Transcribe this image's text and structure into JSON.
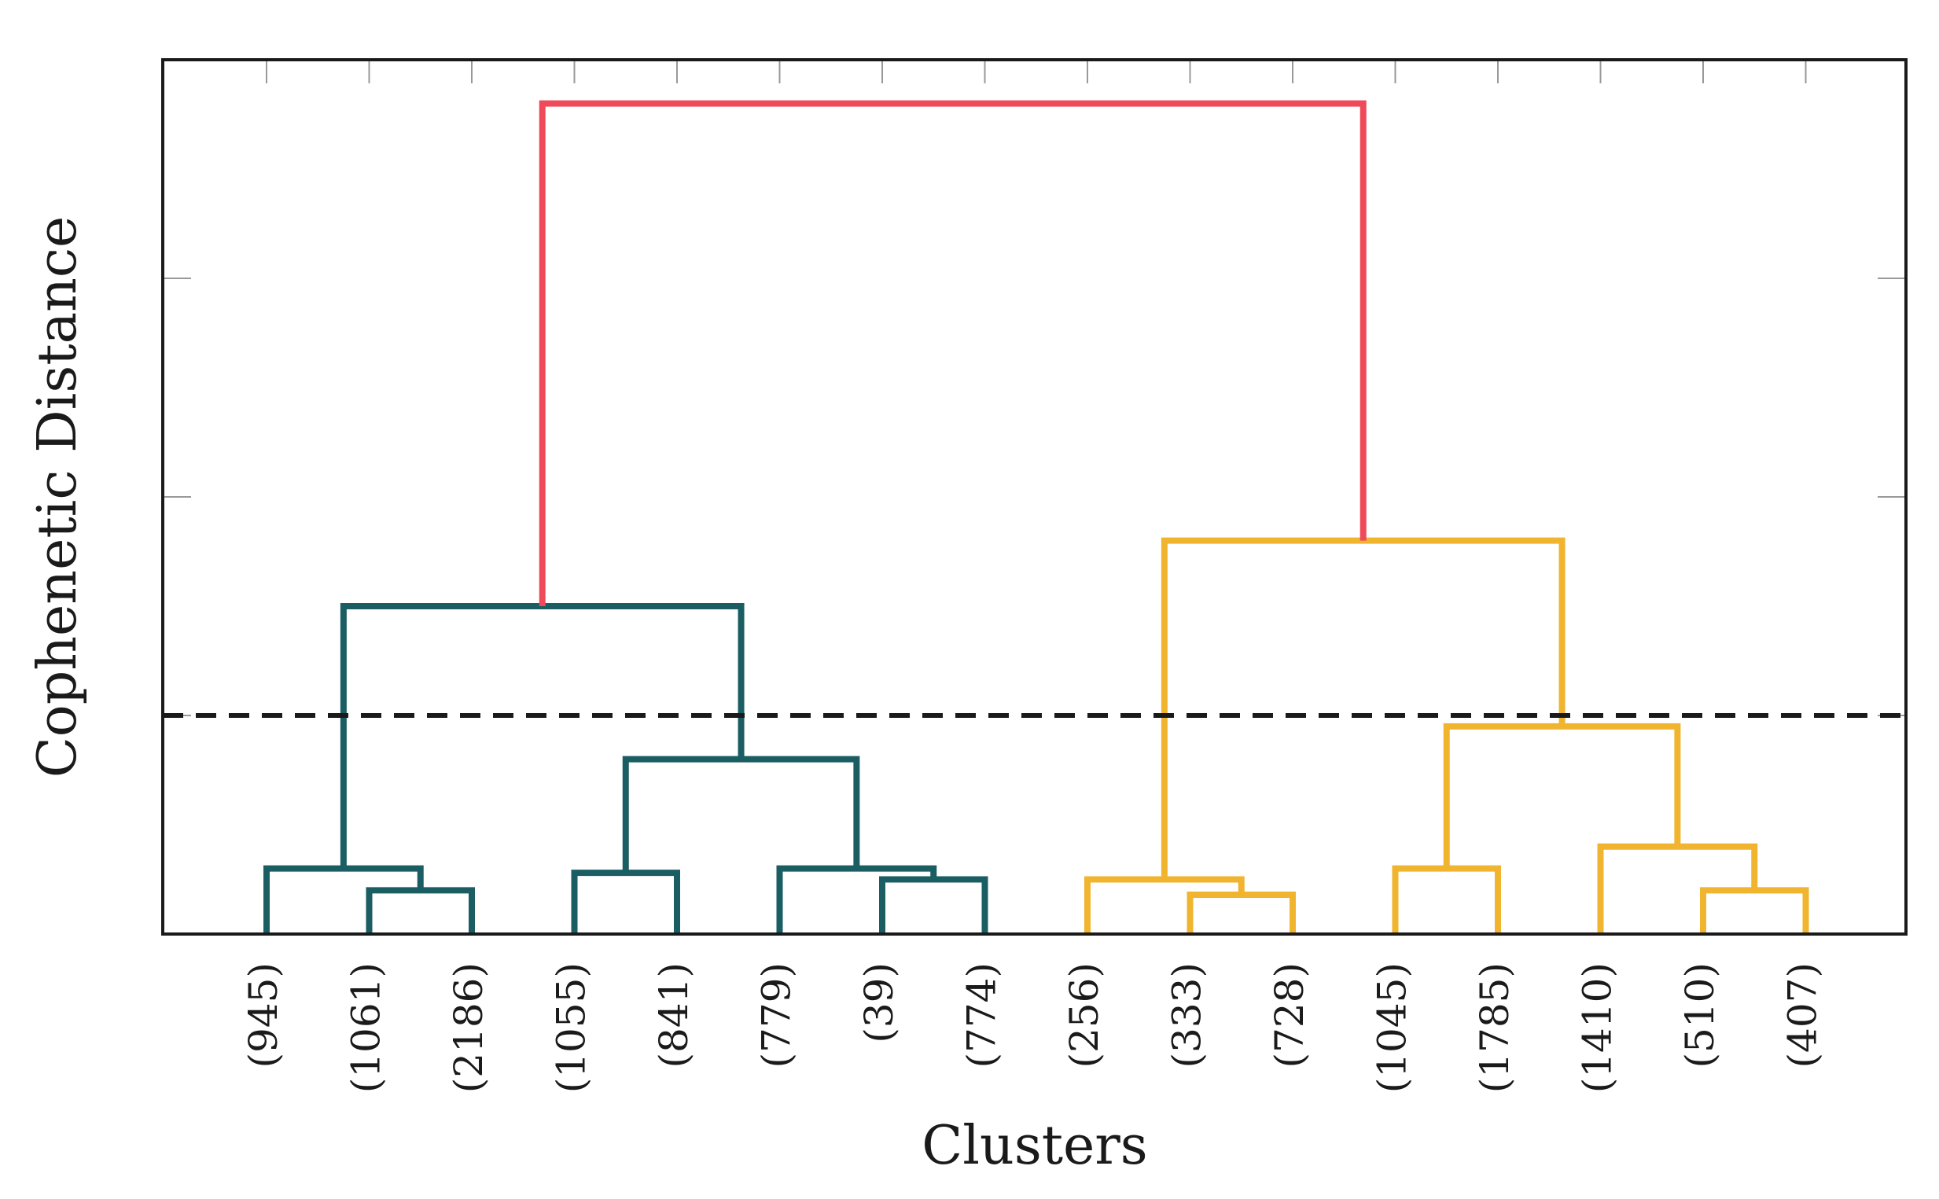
{
  "chart_data": {
    "type": "dendrogram",
    "title": "",
    "xlabel": "Clusters",
    "ylabel": "Cophenetic Distance",
    "ylim": [
      0,
      4
    ],
    "y_ticks": [
      1,
      2,
      3
    ],
    "cut_threshold": 1.0,
    "leaves": [
      "(945)",
      "(1061)",
      "(2186)",
      "(1055)",
      "(841)",
      "(779)",
      "(39)",
      "(774)",
      "(256)",
      "(333)",
      "(728)",
      "(1045)",
      "(1785)",
      "(1410)",
      "(510)",
      "(407)"
    ],
    "colors": {
      "teal": "#1a5e63",
      "gold": "#f0b42f",
      "red": "#ef4a5a",
      "threshold": "#1a1a1a",
      "axis": "#1a1a1a",
      "tick": "#999999"
    },
    "merges": [
      {
        "id": "m1",
        "left": "leaf:1",
        "right": "leaf:2",
        "height": 0.2,
        "color": "teal"
      },
      {
        "id": "m2",
        "left": "leaf:0",
        "right": "m1",
        "height": 0.3,
        "color": "teal"
      },
      {
        "id": "m3",
        "left": "leaf:3",
        "right": "leaf:4",
        "height": 0.28,
        "color": "teal"
      },
      {
        "id": "m4",
        "left": "leaf:6",
        "right": "leaf:7",
        "height": 0.25,
        "color": "teal"
      },
      {
        "id": "m5",
        "left": "leaf:5",
        "right": "m4",
        "height": 0.3,
        "color": "teal"
      },
      {
        "id": "m6",
        "left": "m3",
        "right": "m5",
        "height": 0.8,
        "color": "teal"
      },
      {
        "id": "m7",
        "left": "m2",
        "right": "m6",
        "height": 1.5,
        "color": "teal"
      },
      {
        "id": "m8",
        "left": "leaf:9",
        "right": "leaf:10",
        "height": 0.18,
        "color": "gold"
      },
      {
        "id": "m9",
        "left": "leaf:8",
        "right": "m8",
        "height": 0.25,
        "color": "gold"
      },
      {
        "id": "m10",
        "left": "leaf:11",
        "right": "leaf:12",
        "height": 0.3,
        "color": "gold"
      },
      {
        "id": "m11",
        "left": "leaf:14",
        "right": "leaf:15",
        "height": 0.2,
        "color": "gold"
      },
      {
        "id": "m12",
        "left": "leaf:13",
        "right": "m11",
        "height": 0.4,
        "color": "gold"
      },
      {
        "id": "m13",
        "left": "m10",
        "right": "m12",
        "height": 0.95,
        "color": "gold"
      },
      {
        "id": "m14",
        "left": "m9",
        "right": "m13",
        "height": 1.8,
        "color": "gold"
      },
      {
        "id": "m15",
        "left": "m7",
        "right": "m14",
        "height": 3.8,
        "color": "red"
      }
    ]
  }
}
